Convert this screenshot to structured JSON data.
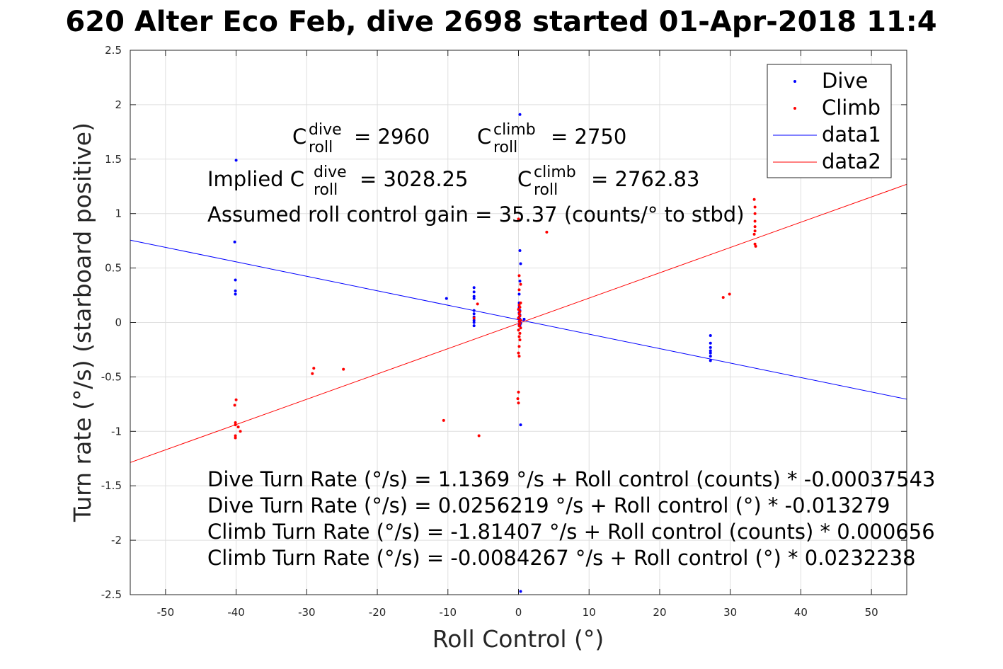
{
  "chart_data": {
    "type": "scatter",
    "title": "620 Alter Eco Feb, dive 2698 started 01-Apr-2018 11:4",
    "xlabel": "Roll Control (°)",
    "ylabel": "Turn rate (°/s) (starboard positive)",
    "xlim": [
      -55,
      55
    ],
    "ylim": [
      -2.5,
      2.5
    ],
    "xticks": [
      -50,
      -40,
      -30,
      -20,
      -10,
      0,
      10,
      20,
      30,
      40,
      50
    ],
    "xtick_labels": [
      "-50",
      "-40",
      "-30",
      "-20",
      "-10",
      "0",
      "10",
      "20",
      "30",
      "40",
      "50"
    ],
    "yticks": [
      -2.5,
      -2,
      -1.5,
      -1,
      -0.5,
      0,
      0.5,
      1,
      1.5,
      2,
      2.5
    ],
    "ytick_labels": [
      "-2.5",
      "-2",
      "-1.5",
      "-1",
      "-0.5",
      "0",
      "0.5",
      "1",
      "1.5",
      "2",
      "2.5"
    ],
    "grid": true,
    "legend_position": "top-right",
    "series": [
      {
        "name": "Dive",
        "kind": "scatter",
        "color": "#0000ff",
        "points": [
          [
            -40,
            1.49
          ],
          [
            -40.2,
            0.74
          ],
          [
            -40.1,
            0.39
          ],
          [
            -40.1,
            0.29
          ],
          [
            -40.1,
            0.26
          ],
          [
            -10.2,
            0.22
          ],
          [
            -6.3,
            0.32
          ],
          [
            -6.3,
            0.28
          ],
          [
            -6.3,
            0.24
          ],
          [
            -6.3,
            0.22
          ],
          [
            -6.3,
            0.11
          ],
          [
            -6.3,
            0.08
          ],
          [
            -6.3,
            0.05
          ],
          [
            -6.3,
            0.02
          ],
          [
            -6.3,
            0.0
          ],
          [
            -6.3,
            -0.03
          ],
          [
            0.2,
            1.91
          ],
          [
            0.2,
            0.66
          ],
          [
            0.3,
            0.54
          ],
          [
            0.2,
            0.38
          ],
          [
            0.1,
            0.26
          ],
          [
            0.1,
            0.18
          ],
          [
            0.1,
            0.14
          ],
          [
            0.2,
            0.11
          ],
          [
            0.1,
            0.09
          ],
          [
            0.2,
            0.07
          ],
          [
            0.1,
            0.05
          ],
          [
            0.2,
            0.03
          ],
          [
            0.1,
            0.01
          ],
          [
            0.2,
            0.0
          ],
          [
            0.3,
            -0.01
          ],
          [
            0.1,
            -0.02
          ],
          [
            0.2,
            -0.03
          ],
          [
            0.8,
            0.03
          ],
          [
            0.3,
            -0.94
          ],
          [
            0.3,
            -2.47
          ],
          [
            27.2,
            -0.12
          ],
          [
            27.2,
            -0.19
          ],
          [
            27.2,
            -0.23
          ],
          [
            27.2,
            -0.26
          ],
          [
            27.2,
            -0.28
          ],
          [
            27.2,
            -0.31
          ],
          [
            27.2,
            -0.35
          ]
        ]
      },
      {
        "name": "Climb",
        "kind": "scatter",
        "color": "#ff0000",
        "points": [
          [
            -40,
            -0.71
          ],
          [
            -40.2,
            -0.76
          ],
          [
            -40.1,
            -0.92
          ],
          [
            -40.1,
            -0.94
          ],
          [
            -39.7,
            -0.96
          ],
          [
            -39.4,
            -1.0
          ],
          [
            -40.1,
            -1.04
          ],
          [
            -40.1,
            -1.06
          ],
          [
            -29,
            -0.42
          ],
          [
            -29.2,
            -0.47
          ],
          [
            -24.8,
            -0.43
          ],
          [
            -10.6,
            -0.9
          ],
          [
            -5.6,
            -1.04
          ],
          [
            -5.8,
            0.17
          ],
          [
            -6.3,
            0.04
          ],
          [
            0.0,
            0.95
          ],
          [
            0.1,
            0.43
          ],
          [
            0.3,
            0.35
          ],
          [
            0.1,
            0.3
          ],
          [
            0.3,
            0.18
          ],
          [
            0.1,
            0.16
          ],
          [
            0.2,
            0.14
          ],
          [
            0.0,
            0.12
          ],
          [
            0.2,
            0.1
          ],
          [
            0.1,
            0.08
          ],
          [
            0.2,
            0.06
          ],
          [
            0.0,
            0.04
          ],
          [
            0.3,
            0.02
          ],
          [
            0.1,
            0.01
          ],
          [
            0.2,
            -0.01
          ],
          [
            0.1,
            -0.03
          ],
          [
            0.3,
            -0.05
          ],
          [
            0.0,
            -0.07
          ],
          [
            0.2,
            -0.1
          ],
          [
            0.1,
            -0.13
          ],
          [
            0.2,
            -0.16
          ],
          [
            0.1,
            -0.22
          ],
          [
            0.0,
            -0.28
          ],
          [
            0.1,
            -0.31
          ],
          [
            0.0,
            -0.64
          ],
          [
            -0.1,
            -0.7
          ],
          [
            0.0,
            -0.74
          ],
          [
            4,
            0.83
          ],
          [
            29,
            0.23
          ],
          [
            29.9,
            0.26
          ],
          [
            33.4,
            1.13
          ],
          [
            33.5,
            1.06
          ],
          [
            33.5,
            1.0
          ],
          [
            33.5,
            0.93
          ],
          [
            33.5,
            0.88
          ],
          [
            33.5,
            0.84
          ],
          [
            33.4,
            0.81
          ],
          [
            33.5,
            0.72
          ],
          [
            33.6,
            0.7
          ]
        ]
      },
      {
        "name": "data1",
        "kind": "line",
        "color": "#0000ff",
        "points": [
          [
            -55,
            0.756
          ],
          [
            55,
            -0.705
          ]
        ]
      },
      {
        "name": "data2",
        "kind": "line",
        "color": "#ff0000",
        "points": [
          [
            -55,
            -1.286
          ],
          [
            55,
            1.269
          ]
        ]
      }
    ],
    "annotations": {
      "c_roll_dive": "= 2960",
      "c_roll_climb": "= 2750",
      "implied_prefix": "Implied C",
      "implied_dive": "= 3028.25",
      "implied_climb": "= 2762.83",
      "sup_dive": "dive",
      "sup_climb": "climb",
      "sub_roll": "roll",
      "c_letter": "C",
      "gain": "Assumed roll control gain = 35.37 (counts/° to stbd)",
      "eq1": "Dive Turn Rate (°/s) = 1.1369 °/s + Roll control (counts) * -0.00037543",
      "eq2": "Dive Turn Rate (°/s) = 0.0256219 °/s + Roll control (°) * -0.013279",
      "eq3": "Climb Turn Rate (°/s) = -1.81407 °/s + Roll control (counts) * 0.000656",
      "eq4": "Climb Turn Rate (°/s) = -0.0084267 °/s + Roll control (°) * 0.0232238"
    }
  }
}
